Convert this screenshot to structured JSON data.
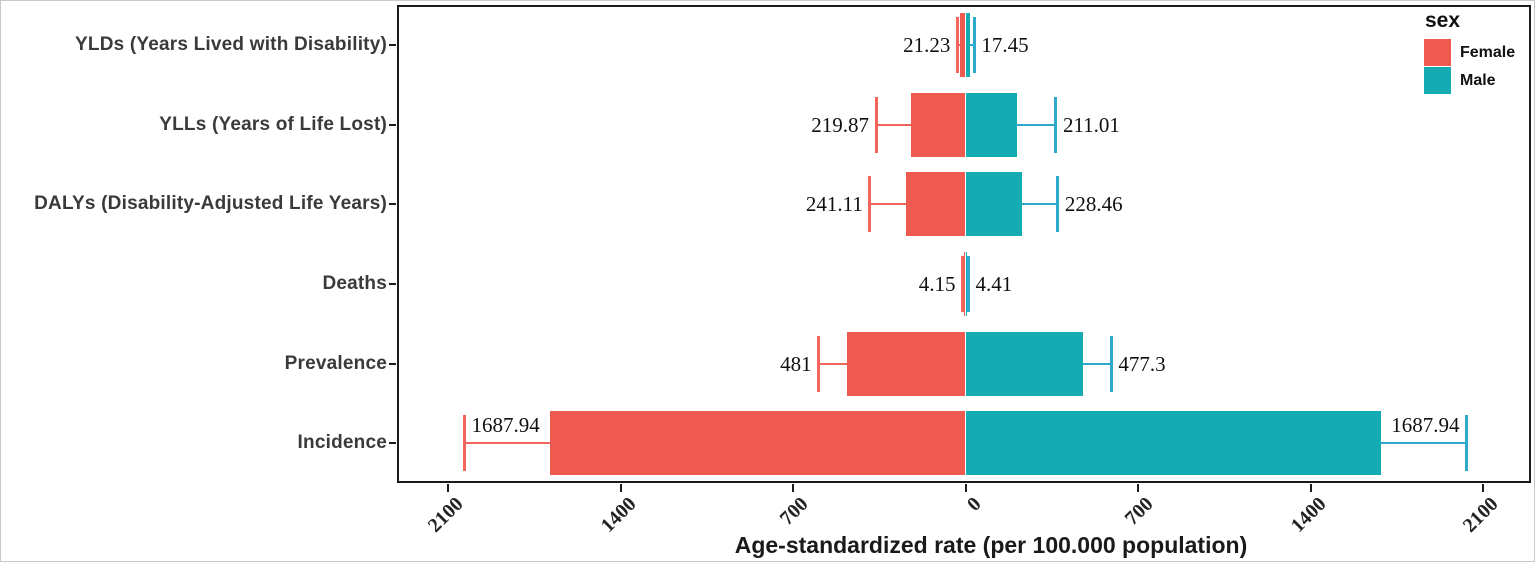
{
  "legend": {
    "title": "sex",
    "items": [
      {
        "label": "Female",
        "color": "#ee5a4f"
      },
      {
        "label": "Male",
        "color": "#15abb3"
      }
    ]
  },
  "chart_data": {
    "type": "bar",
    "orientation": "horizontal-diverging",
    "title": "",
    "xlabel": "Age-standardized rate (per 100.000 population)",
    "ylabel": "",
    "categories": [
      "YLDs (Years Lived with Disability)",
      "YLLs (Years of Life Lost)",
      "DALYs (Disability-Adjusted Life Years)",
      "Deaths",
      "Prevalence",
      "Incidence"
    ],
    "series": [
      {
        "name": "Female",
        "direction": "left",
        "color": "#ee5a4f",
        "whisker_color": "#f2655b",
        "values": [
          21.23,
          219.87,
          241.11,
          4.15,
          481,
          1687.94
        ],
        "value_labels": [
          "21.23",
          "219.87",
          "241.11",
          "4.15",
          "481",
          "1687.94"
        ],
        "ci_upper_estimate": [
          33,
          363,
          388,
          12,
          596,
          2033
        ]
      },
      {
        "name": "Male",
        "direction": "right",
        "color": "#15abb3",
        "whisker_color": "#2fa8ce",
        "values": [
          17.45,
          211.01,
          228.46,
          4.41,
          477.3,
          1687.94
        ],
        "value_labels": [
          "17.45",
          "211.01",
          "228.46",
          "4.41",
          "477.3",
          "1687.94"
        ],
        "ci_upper_estimate": [
          36,
          367,
          375,
          12,
          592,
          2033
        ]
      }
    ],
    "x_tick_labels": [
      "2100",
      "1400",
      "700",
      "0",
      "700",
      "1400",
      "2100"
    ],
    "x_tick_values": [
      -2100,
      -1400,
      -700,
      0,
      700,
      1400,
      2100
    ],
    "xlim": [
      -2300,
      2300
    ],
    "grid": false,
    "legend_position": "top-right-inside",
    "value_labels_inside_rows": [
      "Incidence"
    ]
  }
}
